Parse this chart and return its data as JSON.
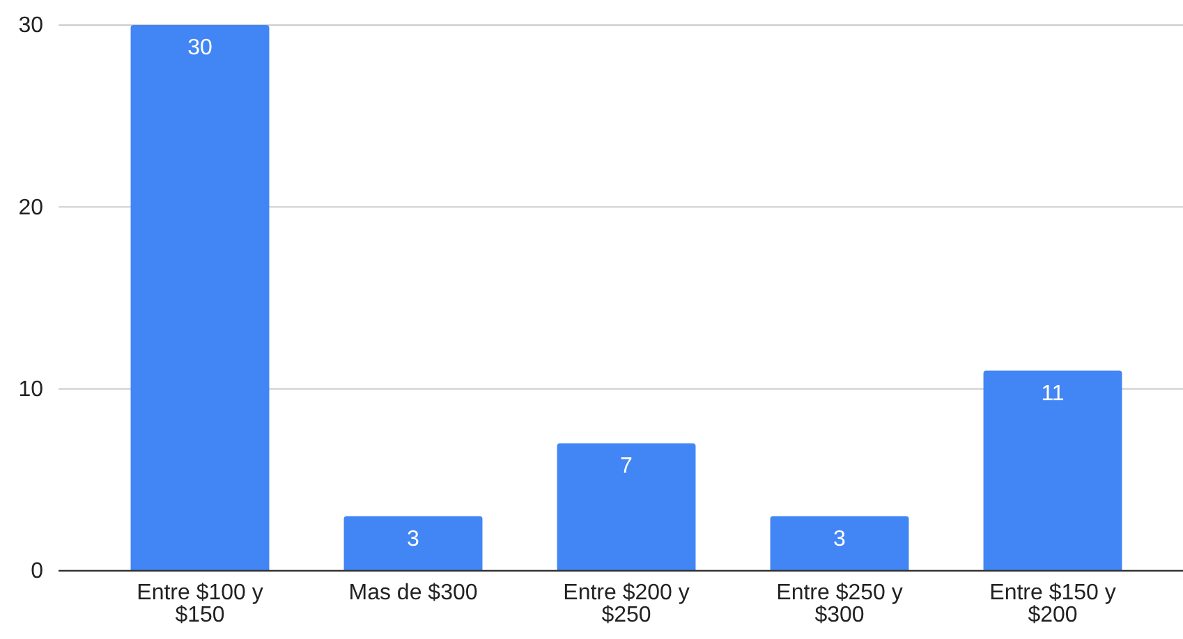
{
  "chart_data": {
    "type": "bar",
    "categories": [
      "Entre $100 y $150",
      "Mas de $300",
      "Entre $200 y $250",
      "Entre $250 y $300",
      "Entre $150 y $200"
    ],
    "values": [
      30,
      3,
      7,
      3,
      11
    ],
    "color": "#4285f4",
    "ylim": [
      0,
      30
    ],
    "yticks": [
      0,
      10,
      20,
      30
    ],
    "grid": "y",
    "data_labels": true
  }
}
